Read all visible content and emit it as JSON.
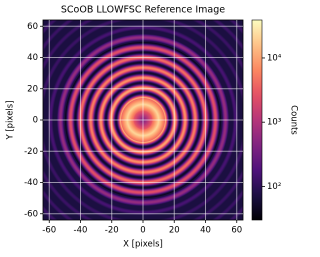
{
  "chart_data": {
    "type": "image",
    "title": "SCoOB LLOWFSC Reference Image",
    "x_label": "X [pixels]",
    "y_label": "Y [pixels]",
    "xlim": [
      -64,
      64
    ],
    "ylim": [
      -64,
      64
    ],
    "xticks": [
      -60,
      -40,
      -20,
      0,
      20,
      40,
      60
    ],
    "yticks": [
      -60,
      -40,
      -20,
      0,
      20,
      40,
      60
    ],
    "grid": true,
    "colormap": "magma",
    "colorbar": {
      "label": "Counts",
      "scale": "log",
      "lim": [
        30,
        39000
      ],
      "ticks": [
        {
          "value": 100,
          "label": "10²"
        },
        {
          "value": 1000,
          "label": "10³"
        },
        {
          "value": 10000,
          "label": "10⁴"
        }
      ]
    }
  }
}
